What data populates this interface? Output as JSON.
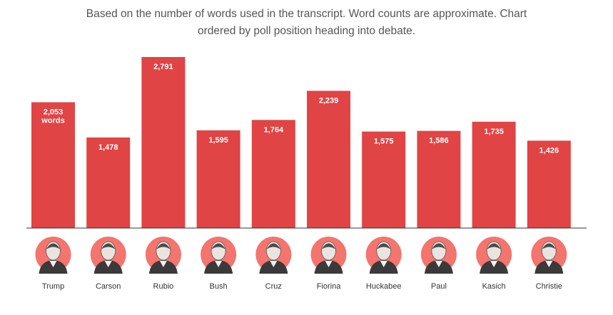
{
  "subtitle_lines": [
    "Based on the number of words used in the transcript. Word counts are approximate. Chart",
    "ordered by poll position heading into debate."
  ],
  "chart_data": {
    "type": "bar",
    "title": "",
    "subtitle": "Based on the number of words used in the transcript. Word counts are approximate. Chart ordered by poll position heading into debate.",
    "xlabel": "",
    "ylabel": "",
    "categories": [
      "Trump",
      "Carson",
      "Rubio",
      "Bush",
      "Cruz",
      "Fiorina",
      "Huckabee",
      "Paul",
      "Kasich",
      "Christie"
    ],
    "values": [
      2053,
      1478,
      2791,
      1595,
      1764,
      2239,
      1575,
      1586,
      1735,
      1426
    ],
    "value_labels": [
      "2,053",
      "1,478",
      "2,791",
      "1,595",
      "1,764",
      "2,239",
      "1,575",
      "1,586",
      "1,735",
      "1,426"
    ],
    "first_label_unit": "words",
    "ylim": [
      0,
      2900
    ],
    "grid": false,
    "legend": "none",
    "bar_color": "#e04444",
    "portrait_circle_color": "#f4746e",
    "icons": [
      "portrait-icon"
    ]
  }
}
